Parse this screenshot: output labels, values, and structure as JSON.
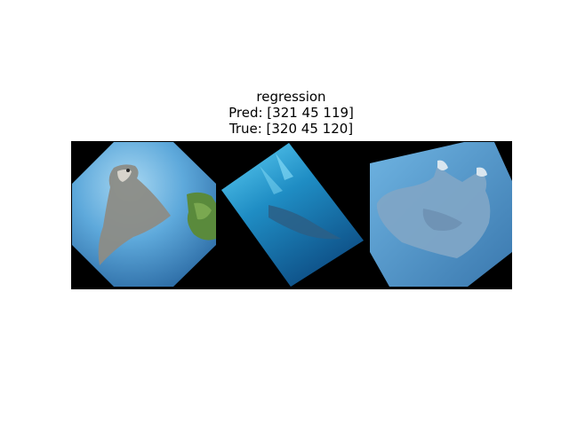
{
  "figure": {
    "title": "regression",
    "pred_line": "Pred: [321  45 119]",
    "true_line": "True: [320  45 120]"
  },
  "images": [
    {
      "name": "manta-ray-octagon-left",
      "subject": "manta ray",
      "dominant_color": "#5ea9db"
    },
    {
      "name": "manta-ray-rotated-middle",
      "subject": "manta ray",
      "dominant_color": "#1f8dc4"
    },
    {
      "name": "manta-ray-hexagon-right",
      "subject": "manta ray",
      "dominant_color": "#4f93c6"
    }
  ],
  "colors": {
    "background": "#ffffff",
    "strip_background": "#000000"
  }
}
